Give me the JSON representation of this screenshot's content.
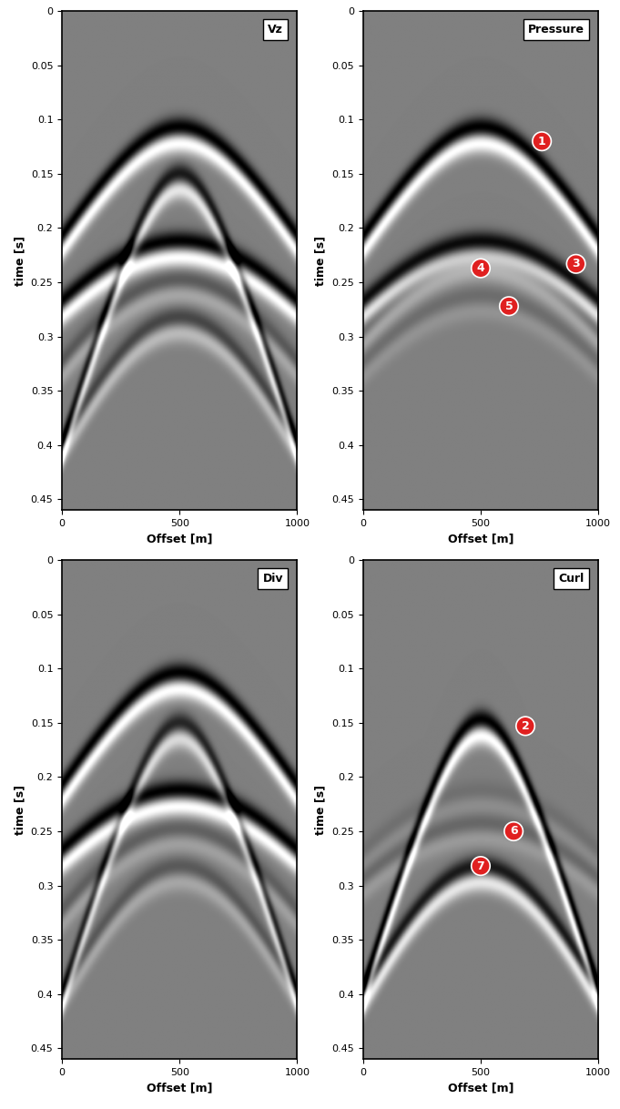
{
  "chart_data": [
    {
      "type": "seismic_gather",
      "title": "Vz",
      "xlabel": "Offset [m]",
      "ylabel": "time [s]",
      "xlim": [
        0,
        1000
      ],
      "ylim": [
        0.46,
        0
      ],
      "xticks": [
        0,
        500,
        1000
      ],
      "yticks": [
        0,
        0.05,
        0.1,
        0.15,
        0.2,
        0.25,
        0.3,
        0.35,
        0.4,
        0.45
      ],
      "events": [
        {
          "apex_offset": 500,
          "apex_time": 0.115,
          "edge_time": 0.215,
          "amplitude": 1.0
        },
        {
          "apex_offset": 500,
          "apex_time": 0.158,
          "edge_time": 0.405,
          "amplitude": 0.8
        },
        {
          "apex_offset": 500,
          "apex_time": 0.22,
          "edge_time": 0.275,
          "amplitude": 1.0
        },
        {
          "apex_offset": 500,
          "apex_time": 0.255,
          "edge_time": 0.33,
          "amplitude": 0.3
        },
        {
          "apex_offset": 500,
          "apex_time": 0.29,
          "edge_time": 0.405,
          "amplitude": 0.45
        }
      ],
      "annotations": []
    },
    {
      "type": "seismic_gather",
      "title": "Pressure",
      "xlabel": "Offset [m]",
      "ylabel": "time [s]",
      "xlim": [
        0,
        1000
      ],
      "ylim": [
        0.46,
        0
      ],
      "xticks": [
        0,
        500,
        1000
      ],
      "yticks": [
        0,
        0.05,
        0.1,
        0.15,
        0.2,
        0.25,
        0.3,
        0.35,
        0.4,
        0.45
      ],
      "events": [
        {
          "apex_offset": 500,
          "apex_time": 0.115,
          "edge_time": 0.215,
          "amplitude": 1.0
        },
        {
          "apex_offset": 500,
          "apex_time": 0.22,
          "edge_time": 0.275,
          "amplitude": 0.9
        },
        {
          "apex_offset": 500,
          "apex_time": 0.235,
          "edge_time": 0.3,
          "amplitude": 0.3
        },
        {
          "apex_offset": 500,
          "apex_time": 0.27,
          "edge_time": 0.33,
          "amplitude": 0.15
        }
      ],
      "annotations": [
        {
          "text": "1",
          "x": 760,
          "y": 0.12
        },
        {
          "text": "3",
          "x": 905,
          "y": 0.233
        },
        {
          "text": "4",
          "x": 500,
          "y": 0.237
        },
        {
          "text": "5",
          "x": 620,
          "y": 0.272
        }
      ]
    },
    {
      "type": "seismic_gather",
      "title": "Div",
      "xlabel": "Offset [m]",
      "ylabel": "time [s]",
      "xlim": [
        0,
        1000
      ],
      "ylim": [
        0.46,
        0
      ],
      "xticks": [
        0,
        500,
        1000
      ],
      "yticks": [
        0,
        0.05,
        0.1,
        0.15,
        0.2,
        0.25,
        0.3,
        0.35,
        0.4,
        0.45
      ],
      "events": [
        {
          "apex_offset": 500,
          "apex_time": 0.112,
          "edge_time": 0.215,
          "amplitude": 1.0
        },
        {
          "apex_offset": 500,
          "apex_time": 0.158,
          "edge_time": 0.405,
          "amplitude": 0.7
        },
        {
          "apex_offset": 500,
          "apex_time": 0.22,
          "edge_time": 0.275,
          "amplitude": 1.0
        },
        {
          "apex_offset": 500,
          "apex_time": 0.255,
          "edge_time": 0.33,
          "amplitude": 0.25
        },
        {
          "apex_offset": 500,
          "apex_time": 0.29,
          "edge_time": 0.405,
          "amplitude": 0.3
        }
      ],
      "annotations": []
    },
    {
      "type": "seismic_gather",
      "title": "Curl",
      "xlabel": "Offset [m]",
      "ylabel": "time [s]",
      "xlim": [
        0,
        1000
      ],
      "ylim": [
        0.46,
        0
      ],
      "xticks": [
        0,
        500,
        1000
      ],
      "yticks": [
        0,
        0.05,
        0.1,
        0.15,
        0.2,
        0.25,
        0.3,
        0.35,
        0.4,
        0.45
      ],
      "events": [
        {
          "apex_offset": 500,
          "apex_time": 0.155,
          "edge_time": 0.4,
          "amplitude": 1.0
        },
        {
          "apex_offset": 500,
          "apex_time": 0.22,
          "edge_time": 0.275,
          "amplitude": 0.12
        },
        {
          "apex_offset": 500,
          "apex_time": 0.25,
          "edge_time": 0.3,
          "amplitude": 0.2
        },
        {
          "apex_offset": 500,
          "apex_time": 0.29,
          "edge_time": 0.405,
          "amplitude": 0.8
        }
      ],
      "annotations": [
        {
          "text": "2",
          "x": 690,
          "y": 0.153
        },
        {
          "text": "6",
          "x": 640,
          "y": 0.25
        },
        {
          "text": "7",
          "x": 500,
          "y": 0.282
        }
      ]
    }
  ]
}
